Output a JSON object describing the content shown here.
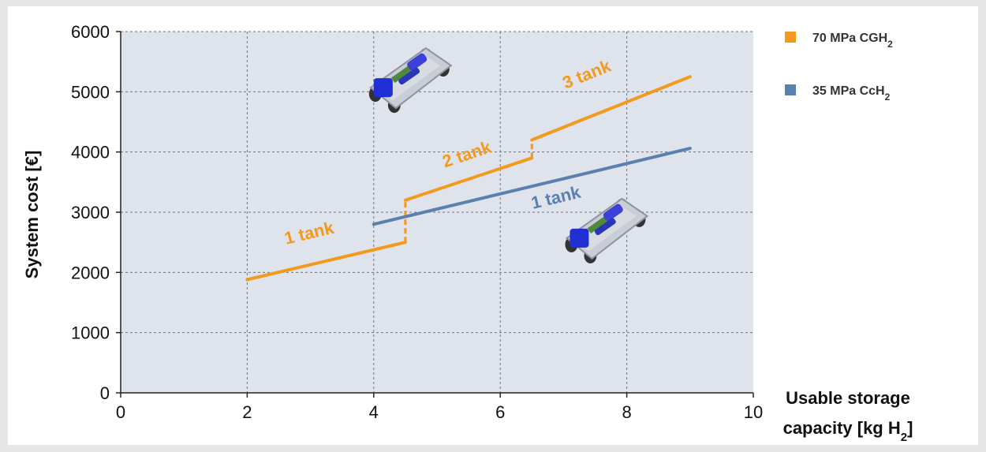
{
  "chart_data": {
    "type": "line",
    "xlim": [
      0,
      10
    ],
    "ylim": [
      0,
      6000
    ],
    "x_ticks": [
      "0",
      "2",
      "4",
      "6",
      "8",
      "10"
    ],
    "y_ticks": [
      "0",
      "1000",
      "2000",
      "3000",
      "4000",
      "5000",
      "6000"
    ],
    "ylabel": "System cost [€]",
    "xlabel_line1": "Usable storage",
    "xlabel_line2": "capacity [kg H",
    "xlabel_sub": "2",
    "xlabel_end": "]",
    "grid": true,
    "legend_position": "right",
    "series": [
      {
        "name": "70 MPa CGH",
        "name_sub": "2",
        "color": "#f39a1e",
        "segments": [
          {
            "points": [
              [
                2,
                1880
              ],
              [
                4.5,
                2500
              ]
            ],
            "label": "1 tank",
            "label_at": [
              3.0,
              2560
            ]
          },
          {
            "points": [
              [
                4.5,
                3200
              ],
              [
                6.5,
                3900
              ]
            ],
            "label": "2 tank",
            "label_at": [
              5.5,
              3870
            ]
          },
          {
            "points": [
              [
                6.5,
                4200
              ],
              [
                9.0,
                5250
              ]
            ],
            "label": "3 tank",
            "label_at": [
              7.4,
              5200
            ]
          }
        ],
        "steps": [
          [
            4.5,
            2500,
            3200
          ],
          [
            6.5,
            3900,
            4200
          ]
        ]
      },
      {
        "name": "35 MPa CcH",
        "name_sub": "2",
        "color": "#5a80ad",
        "segments": [
          {
            "points": [
              [
                4.0,
                2800
              ],
              [
                9.0,
                4060
              ]
            ],
            "label": "1 tank",
            "label_at": [
              6.9,
              3150
            ]
          }
        ],
        "steps": []
      }
    ]
  },
  "images": [
    {
      "name": "vehicle-chassis-illustration-top",
      "x_data": 4.2,
      "y_data": 5200
    },
    {
      "name": "vehicle-chassis-illustration-right",
      "x_data": 7.3,
      "y_data": 2700
    }
  ]
}
